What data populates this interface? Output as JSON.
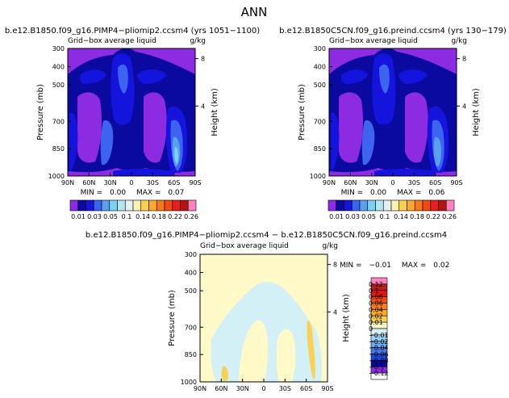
{
  "page_title": "ANN",
  "chart_data": [
    {
      "type": "heatmap",
      "title": "b.e12.B1850.f09_g16.PIMP4−pliomip2.ccsm4 (yrs 1051−1100)",
      "subtitle": "Grid−box average liquid",
      "units": "g/kg",
      "xlabel": "",
      "ylabel": "Pressure (mb)",
      "y2label": "Height (km)",
      "x_ticks": [
        "90N",
        "60N",
        "30N",
        "0",
        "30S",
        "60S",
        "90S"
      ],
      "y_ticks": [
        "300",
        "400",
        "500",
        "700",
        "850",
        "1000"
      ],
      "y2_ticks": [
        "8",
        "4"
      ],
      "stats": {
        "min_label": "MIN =",
        "min": "0.00",
        "max_label": "MAX =",
        "max": "0.07"
      }
    },
    {
      "type": "heatmap",
      "title": "b.e12.B1850C5CN.f09_g16.preind.ccsm4 (yrs 130−179)",
      "subtitle": "Grid−box average liquid",
      "units": "g/kg",
      "xlabel": "",
      "ylabel": "Pressure (mb)",
      "y2label": "Height (km)",
      "x_ticks": [
        "90N",
        "60N",
        "30N",
        "0",
        "30S",
        "60S",
        "90S"
      ],
      "y_ticks": [
        "300",
        "400",
        "500",
        "700",
        "850",
        "1000"
      ],
      "y2_ticks": [
        "8",
        "4"
      ],
      "stats": {
        "min_label": "MIN =",
        "min": "0.00",
        "max_label": "MAX =",
        "max": "0.06"
      }
    },
    {
      "type": "heatmap",
      "title": "b.e12.B1850.f09_g16.PIMP4−pliomip2.ccsm4 − b.e12.B1850C5CN.f09_g16.preind.ccsm4",
      "subtitle": "Grid−box average liquid",
      "units": "g/kg",
      "xlabel": "",
      "ylabel": "Pressure (mb)",
      "y2label": "Height (km)",
      "x_ticks": [
        "90N",
        "60N",
        "30N",
        "0",
        "30S",
        "60S",
        "90S"
      ],
      "y_ticks": [
        "300",
        "400",
        "500",
        "700",
        "850",
        "1000"
      ],
      "y2_ticks": [
        "8",
        "4"
      ],
      "stats": {
        "min_label": "MIN =",
        "min": "−0.01",
        "max_label": "MAX =",
        "max": "0.02"
      }
    }
  ],
  "colorbar_abs": {
    "labels": [
      "0.01",
      "0.03",
      "0.05",
      "0.1",
      "0.14",
      "0.18",
      "0.22",
      "0.26"
    ],
    "colors": [
      "#8c2be2",
      "#0a0aa0",
      "#1414dc",
      "#3c64f0",
      "#5aa0f0",
      "#78d2f0",
      "#b4e6f0",
      "#e6f0f0",
      "#fff0b4",
      "#fad250",
      "#faaa28",
      "#f5781e",
      "#f04b14",
      "#e61e1e",
      "#b41414",
      "#ff82be"
    ]
  },
  "colorbar_diff": {
    "labels": [
      "0.12",
      "0.1",
      "0.08",
      "0.06",
      "0.04",
      "0.02",
      "0.01",
      "0",
      "−0.01",
      "−0.02",
      "−0.04",
      "−0.06",
      "−0.08",
      "−0.1",
      "−0.12"
    ],
    "colors": [
      "#ff82be",
      "#b41e1e",
      "#e61414",
      "#f04b14",
      "#fa7d1e",
      "#faaa28",
      "#fad250",
      "#fffac8",
      "#d2f0f5",
      "#a0d2fa",
      "#6eaaf0",
      "#4678e6",
      "#1e46dc",
      "#0a0aa0",
      "#8c2be2",
      "#ffffff"
    ]
  },
  "colors": {
    "abs_background": "#8c2be2",
    "abs_level1": "#0a0aa0",
    "abs_level2": "#1414dc",
    "abs_level3": "#3c64f0",
    "abs_level4": "#5aa0f0",
    "abs_level5": "#78d2f0",
    "diff_background": "#fffac8",
    "diff_negative": "#d2f0f5",
    "diff_positive": "#fad250"
  }
}
